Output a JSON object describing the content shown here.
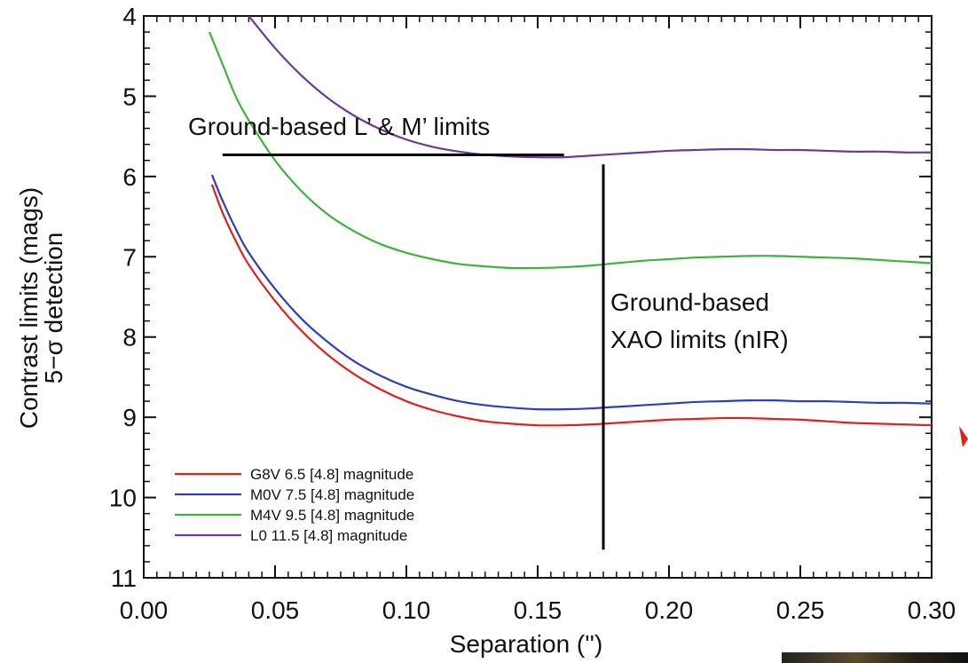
{
  "chart_data": {
    "type": "line",
    "xlabel": "Separation ('')",
    "ylabel": [
      "Contrast limits (mags)",
      "5−σ detection"
    ],
    "xlim": [
      0.0,
      0.3
    ],
    "ylim": [
      4,
      11
    ],
    "y_inverted": true,
    "xticks": [
      "0.00",
      "0.05",
      "0.10",
      "0.15",
      "0.20",
      "0.25",
      "0.30"
    ],
    "yticks": [
      "4",
      "5",
      "6",
      "7",
      "8",
      "9",
      "10",
      "11"
    ],
    "legend_position": "bottom-left",
    "series": [
      {
        "name": "G8V 6.5  [4.8] magnitude",
        "color": "#e0201b",
        "x": [
          0.026,
          0.03,
          0.035,
          0.04,
          0.05,
          0.06,
          0.07,
          0.08,
          0.09,
          0.1,
          0.11,
          0.12,
          0.13,
          0.14,
          0.15,
          0.16,
          0.17,
          0.18,
          0.19,
          0.2,
          0.21,
          0.22,
          0.23,
          0.24,
          0.25,
          0.26,
          0.27,
          0.28,
          0.29,
          0.3
        ],
        "y": [
          6.1,
          6.45,
          6.8,
          7.1,
          7.55,
          7.92,
          8.22,
          8.46,
          8.65,
          8.8,
          8.91,
          8.99,
          9.05,
          9.08,
          9.1,
          9.1,
          9.09,
          9.07,
          9.05,
          9.03,
          9.02,
          9.01,
          9.01,
          9.02,
          9.03,
          9.05,
          9.07,
          9.08,
          9.09,
          9.1
        ]
      },
      {
        "name": "M0V 7.5  [4.8] magnitude",
        "color": "#2b3fb8",
        "x": [
          0.026,
          0.03,
          0.035,
          0.04,
          0.05,
          0.06,
          0.07,
          0.08,
          0.09,
          0.1,
          0.11,
          0.12,
          0.13,
          0.14,
          0.15,
          0.16,
          0.17,
          0.18,
          0.19,
          0.2,
          0.21,
          0.22,
          0.23,
          0.24,
          0.25,
          0.26,
          0.27,
          0.28,
          0.29,
          0.3
        ],
        "y": [
          5.98,
          6.3,
          6.65,
          6.95,
          7.4,
          7.77,
          8.06,
          8.3,
          8.48,
          8.62,
          8.72,
          8.8,
          8.85,
          8.88,
          8.9,
          8.9,
          8.89,
          8.87,
          8.85,
          8.83,
          8.81,
          8.8,
          8.79,
          8.79,
          8.8,
          8.8,
          8.81,
          8.82,
          8.82,
          8.83
        ]
      },
      {
        "name": "M4V 9.5  [4.8] magnitude",
        "color": "#3cb43c",
        "x": [
          0.025,
          0.03,
          0.035,
          0.04,
          0.05,
          0.06,
          0.07,
          0.08,
          0.09,
          0.1,
          0.11,
          0.12,
          0.13,
          0.14,
          0.15,
          0.16,
          0.17,
          0.18,
          0.19,
          0.2,
          0.21,
          0.22,
          0.23,
          0.24,
          0.25,
          0.26,
          0.27,
          0.28,
          0.29,
          0.3
        ],
        "y": [
          4.2,
          4.6,
          5.0,
          5.3,
          5.8,
          6.18,
          6.47,
          6.68,
          6.84,
          6.95,
          7.03,
          7.09,
          7.12,
          7.14,
          7.14,
          7.13,
          7.11,
          7.08,
          7.05,
          7.03,
          7.01,
          7.0,
          6.99,
          6.99,
          7.0,
          7.01,
          7.02,
          7.04,
          7.06,
          7.08
        ]
      },
      {
        "name": "L0  11.5  [4.8] magnitude",
        "color": "#6a3a96",
        "x": [
          0.04,
          0.05,
          0.06,
          0.07,
          0.08,
          0.09,
          0.1,
          0.11,
          0.12,
          0.13,
          0.14,
          0.15,
          0.16,
          0.17,
          0.18,
          0.19,
          0.2,
          0.21,
          0.22,
          0.23,
          0.24,
          0.25,
          0.26,
          0.27,
          0.28,
          0.29,
          0.3
        ],
        "y": [
          4.0,
          4.4,
          4.74,
          5.02,
          5.24,
          5.41,
          5.54,
          5.63,
          5.69,
          5.73,
          5.75,
          5.76,
          5.76,
          5.74,
          5.72,
          5.7,
          5.68,
          5.67,
          5.66,
          5.66,
          5.67,
          5.67,
          5.68,
          5.69,
          5.69,
          5.7,
          5.7
        ]
      }
    ],
    "annotations": [
      {
        "text": "Ground-based L’ & M’ limits",
        "type": "horizontal-line",
        "x_range": [
          0.03,
          0.16
        ],
        "y": 5.73
      },
      {
        "text": [
          "Ground-based",
          "XAO limits (nIR)"
        ],
        "type": "vertical-line",
        "x": 0.175,
        "y_range": [
          5.85,
          10.65
        ]
      }
    ]
  }
}
